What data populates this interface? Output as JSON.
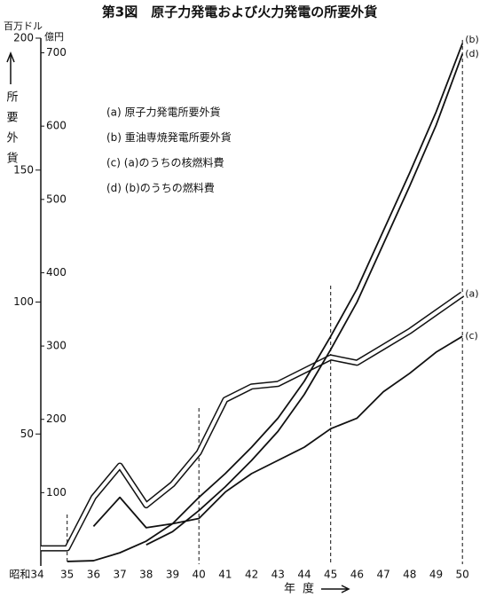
{
  "chart_data": {
    "type": "line",
    "title": "第3図　原子力発電および火力発電の所要外貨",
    "y_unit": "百万ドル",
    "y2_unit": "億円",
    "y_label": "所要外貨",
    "x_label": "年度",
    "categories": [
      "昭和34",
      "35",
      "36",
      "37",
      "38",
      "39",
      "40",
      "41",
      "42",
      "43",
      "44",
      "45",
      "46",
      "47",
      "48",
      "49",
      "50"
    ],
    "ylim": [
      0,
      200
    ],
    "yticks": [
      50,
      100,
      150,
      200
    ],
    "y2lim": [
      0,
      720
    ],
    "y2ticks": [
      100,
      200,
      300,
      400,
      500,
      600,
      700
    ],
    "dashed_at": [
      "35",
      "40",
      "45",
      "50"
    ],
    "series": [
      {
        "name": "(a) 原子力発電所要外貨",
        "tag": "(a)",
        "color": "#111111",
        "double": true,
        "values": [
          6.7,
          6.7,
          26,
          38,
          23,
          31,
          43,
          63,
          68,
          69,
          74,
          79,
          77,
          83,
          89,
          96,
          103
        ]
      },
      {
        "name": "(b) 重油専焼発電所要外貨",
        "tag": "(b)",
        "color": "#111111",
        "values": [
          null,
          1.7,
          2,
          5,
          9.4,
          16,
          26,
          35,
          45,
          56,
          70,
          87,
          105,
          127,
          149,
          172,
          198
        ]
      },
      {
        "name": "(c) (a)のうちの核燃料費",
        "tag": "(c)",
        "color": "#111111",
        "values": [
          null,
          null,
          15,
          26,
          14.5,
          16,
          18,
          28,
          35,
          40,
          45,
          52,
          56,
          66,
          73,
          81,
          87
        ]
      },
      {
        "name": "(d) (b)のうちの燃料費",
        "tag": "(d)",
        "color": "#111111",
        "values": [
          null,
          null,
          null,
          null,
          8,
          13,
          21,
          30,
          40,
          51,
          65,
          82,
          100,
          122,
          144,
          167,
          194
        ]
      }
    ]
  }
}
